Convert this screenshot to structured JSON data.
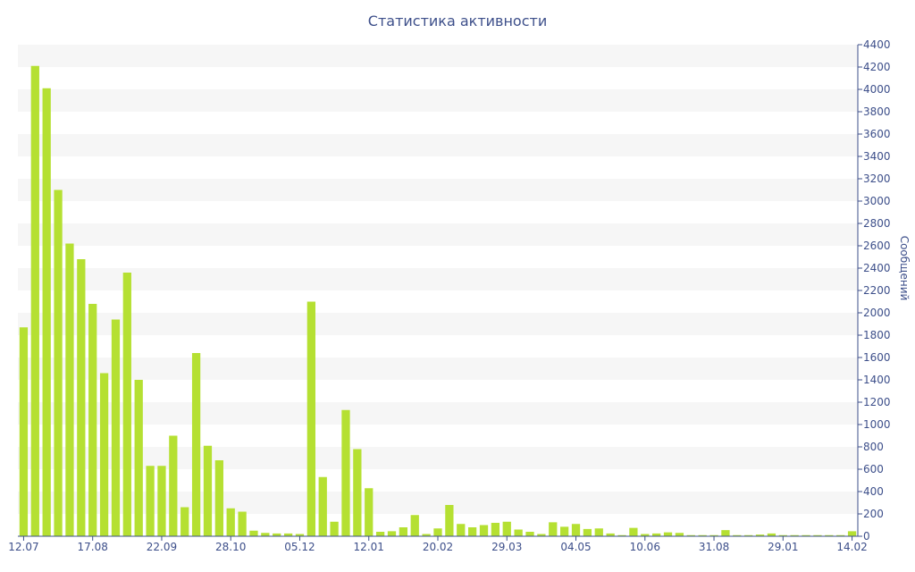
{
  "chart_data": {
    "type": "bar",
    "title": "Статистика активности",
    "xlabel": "",
    "ylabel": "Сообщений",
    "ylim": [
      0,
      4400
    ],
    "y_ticks": [
      0,
      200,
      400,
      600,
      800,
      1000,
      1200,
      1400,
      1600,
      1800,
      2000,
      2200,
      2400,
      2600,
      2800,
      3000,
      3200,
      3400,
      3600,
      3800,
      4000,
      4200,
      4400
    ],
    "y_axis_side": "right",
    "grid": "horizontal alternating bands",
    "bar_color": "#b5e032",
    "x_tick_labels": [
      {
        "label": "12.07",
        "index": 0
      },
      {
        "label": "17.08",
        "index": 6
      },
      {
        "label": "22.09",
        "index": 12
      },
      {
        "label": "28.10",
        "index": 18
      },
      {
        "label": "05.12",
        "index": 24
      },
      {
        "label": "12.01",
        "index": 30
      },
      {
        "label": "20.02",
        "index": 36
      },
      {
        "label": "29.03",
        "index": 42
      },
      {
        "label": "04.05",
        "index": 48
      },
      {
        "label": "10.06",
        "index": 54
      },
      {
        "label": "31.08",
        "index": 60
      },
      {
        "label": "29.01",
        "index": 66
      },
      {
        "label": "14.02",
        "index": 72
      }
    ],
    "values": [
      1870,
      4210,
      4010,
      3100,
      2620,
      2480,
      2080,
      1460,
      1940,
      2360,
      1400,
      630,
      630,
      900,
      260,
      1640,
      810,
      680,
      250,
      220,
      50,
      30,
      25,
      25,
      20,
      2100,
      530,
      130,
      1130,
      780,
      430,
      40,
      45,
      80,
      190,
      20,
      70,
      280,
      110,
      80,
      100,
      120,
      130,
      60,
      40,
      20,
      125,
      85,
      110,
      65,
      70,
      25,
      10,
      75,
      20,
      25,
      35,
      30,
      10,
      10,
      10,
      55,
      10,
      10,
      15,
      25,
      10,
      10,
      10,
      10,
      10,
      10,
      45
    ]
  }
}
